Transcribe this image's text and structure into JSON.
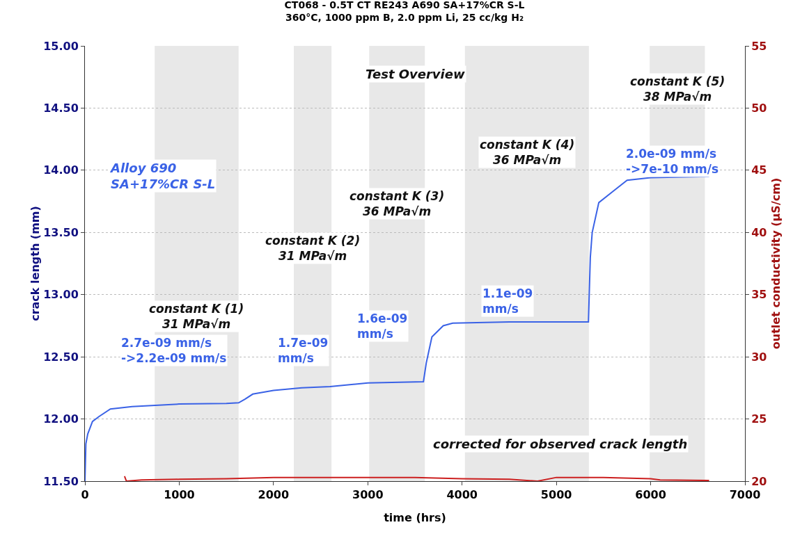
{
  "chart_data": {
    "type": "line",
    "title": "CT068 - 0.5T CT RE243 A690 SA+17%CR S-L",
    "subtitle": "360°C, 1000 ppm B, 2.0 ppm Li, 25 cc/kg H₂",
    "xlabel": "time (hrs)",
    "ylabel": "crack length (mm)",
    "y2label": "outlet conductivity (µS/cm)",
    "xlim": [
      0,
      7000
    ],
    "xticks": [
      0,
      1000,
      2000,
      3000,
      4000,
      5000,
      6000,
      7000
    ],
    "ylim": [
      11.5,
      15
    ],
    "yticks": [
      {
        "value": 11.5,
        "label": "11.50"
      },
      {
        "value": 12,
        "label": "12.00"
      },
      {
        "value": 12.5,
        "label": "12.50"
      },
      {
        "value": 13,
        "label": "13.00"
      },
      {
        "value": 13.5,
        "label": "13.50"
      },
      {
        "value": 14,
        "label": "14.00"
      },
      {
        "value": 14.5,
        "label": "14.50"
      },
      {
        "value": 15,
        "label": "15.00"
      }
    ],
    "y2lim": [
      20,
      55
    ],
    "y2ticks": [
      20,
      25,
      30,
      35,
      40,
      45,
      50,
      55
    ],
    "grid": "y",
    "marker": "none",
    "line_style": "solid",
    "series": [
      {
        "color": "#3a62e6",
        "x": [
          0,
          10,
          30,
          80,
          150,
          270,
          500,
          1000,
          1500,
          1630,
          1700,
          1780,
          2000,
          2300,
          2600,
          3000,
          3590,
          3620,
          3680,
          3800,
          3900,
          4500,
          5340,
          5360,
          5380,
          5450,
          5600,
          5750,
          6000,
          6620
        ],
        "values": [
          11.5,
          11.8,
          11.88,
          11.98,
          12.02,
          12.08,
          12.1,
          12.12,
          12.125,
          12.13,
          12.16,
          12.2,
          12.23,
          12.25,
          12.26,
          12.29,
          12.3,
          12.45,
          12.66,
          12.75,
          12.77,
          12.78,
          12.78,
          13.3,
          13.5,
          13.74,
          13.83,
          13.92,
          13.94,
          13.95
        ]
      },
      {
        "color": "#cc1f1f",
        "axis": "y2",
        "x": [
          420,
          440,
          600,
          1000,
          1500,
          2000,
          2500,
          3000,
          3500,
          4000,
          4500,
          4800,
          5000,
          5500,
          6000,
          6100,
          6620
        ],
        "values": [
          20.4,
          20.0,
          20.1,
          20.15,
          20.2,
          20.3,
          20.3,
          20.3,
          20.3,
          20.2,
          20.15,
          20.0,
          20.3,
          20.3,
          20.2,
          20.1,
          20.05
        ]
      }
    ],
    "bands": [
      {
        "axis": "x",
        "from": 740,
        "to": 1630,
        "label": "constant K (1)\n31 MPa√m",
        "color": "#e8e8e8"
      },
      {
        "axis": "x",
        "from": 2215,
        "to": 2615,
        "label": "constant K (2)\n31 MPa√m",
        "color": "#e8e8e8"
      },
      {
        "axis": "x",
        "from": 3015,
        "to": 3605,
        "label": "constant K (3)\n36 MPa√m",
        "color": "#e8e8e8"
      },
      {
        "axis": "x",
        "from": 4030,
        "to": 5345,
        "label": "constant K (4)\n36 MPa√m",
        "color": "#e8e8e8"
      },
      {
        "axis": "x",
        "from": 5990,
        "to": 6575,
        "label": "constant K (5)\n38 MPa√m",
        "color": "#e8e8e8"
      }
    ],
    "annotations": [
      "Test Overview",
      "Alloy 690\nSA+17%CR S-L",
      "2.7e-09 mm/s\n->2.2e-09 mm/s",
      "1.7e-09\nmm/s",
      "1.6e-09\nmm/s",
      "1.1e-09\nmm/s",
      "2.0e-09 mm/s\n->7e-10 mm/s",
      "corrected for observed crack length"
    ]
  }
}
